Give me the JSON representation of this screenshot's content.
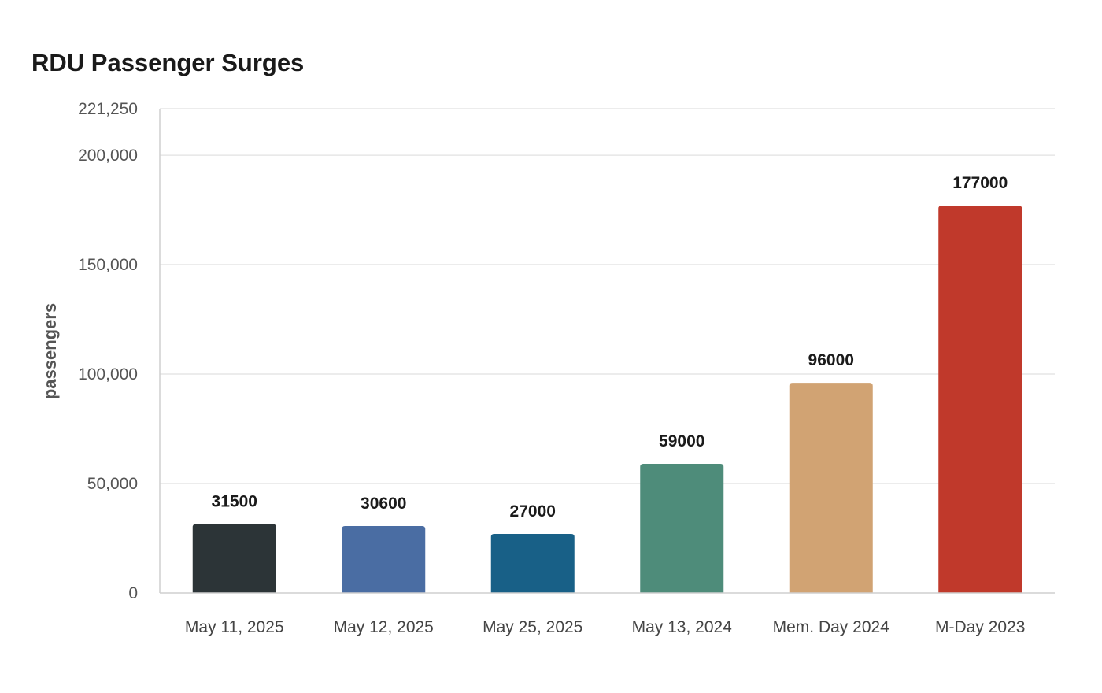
{
  "chart_data": {
    "type": "bar",
    "title": "RDU Passenger Surges",
    "ylabel": "passengers",
    "xlabel": "",
    "categories": [
      "May 11, 2025",
      "May 12, 2025",
      "May 25, 2025",
      "May 13, 2024",
      "Mem. Day 2024",
      "M-Day 2023"
    ],
    "values": [
      31500,
      30600,
      27000,
      59000,
      96000,
      177000
    ],
    "data_labels": [
      "31500",
      "30600",
      "27000",
      "59000",
      "96000",
      "177000"
    ],
    "colors": [
      "#2c3437",
      "#4a6da3",
      "#186087",
      "#4e8c7a",
      "#d1a373",
      "#c0392b"
    ],
    "ylim": [
      0,
      221250
    ],
    "yticks": [
      0,
      50000,
      100000,
      150000,
      200000,
      221250
    ],
    "ytick_labels": [
      "0",
      "50,000",
      "100,000",
      "150,000",
      "200,000",
      "221,250"
    ],
    "grid": true,
    "legend": "none"
  }
}
